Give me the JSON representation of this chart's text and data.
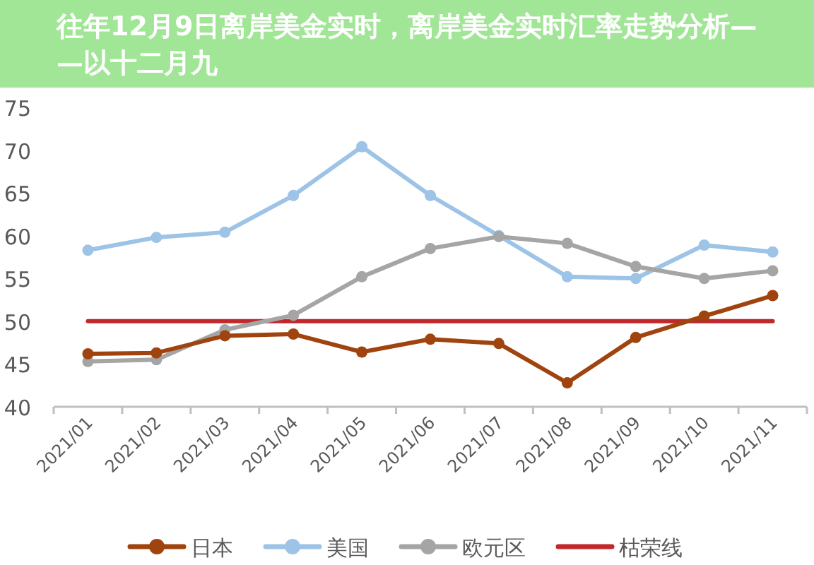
{
  "chart_data": {
    "type": "line",
    "title": "往年12月9日离岸美金实时，离岸美金实时汇率走势分析——以十二月九",
    "categories": [
      "2021/01",
      "2021/02",
      "2021/03",
      "2021/04",
      "2021/05",
      "2021/06",
      "2021/07",
      "2021/08",
      "2021/09",
      "2021/10",
      "2021/11"
    ],
    "ylim": [
      40,
      75
    ],
    "yticks": [
      40,
      45,
      50,
      55,
      60,
      65,
      70,
      75
    ],
    "grid": false,
    "legend": "bottom",
    "marker": "circle",
    "line_style": "solid",
    "series": [
      {
        "name": "日本",
        "color": "#a0440f",
        "values": [
          46.2,
          46.3,
          48.3,
          48.5,
          46.4,
          47.9,
          47.4,
          42.8,
          48.1,
          50.6,
          53.0
        ]
      },
      {
        "name": "美国",
        "color": "#9dc3e6",
        "values": [
          58.3,
          59.8,
          60.4,
          64.7,
          70.4,
          64.7,
          60.0,
          55.2,
          55.0,
          58.9,
          58.1
        ]
      },
      {
        "name": "欧元区",
        "color": "#a5a5a5",
        "values": [
          45.3,
          45.5,
          49.0,
          50.7,
          55.2,
          58.5,
          59.9,
          59.1,
          56.4,
          55.0,
          55.9
        ]
      },
      {
        "name": "枯荣线",
        "color": "#c0282c",
        "marker": "none",
        "values": [
          50,
          50,
          50,
          50,
          50,
          50,
          50,
          50,
          50,
          50,
          50
        ]
      }
    ]
  }
}
